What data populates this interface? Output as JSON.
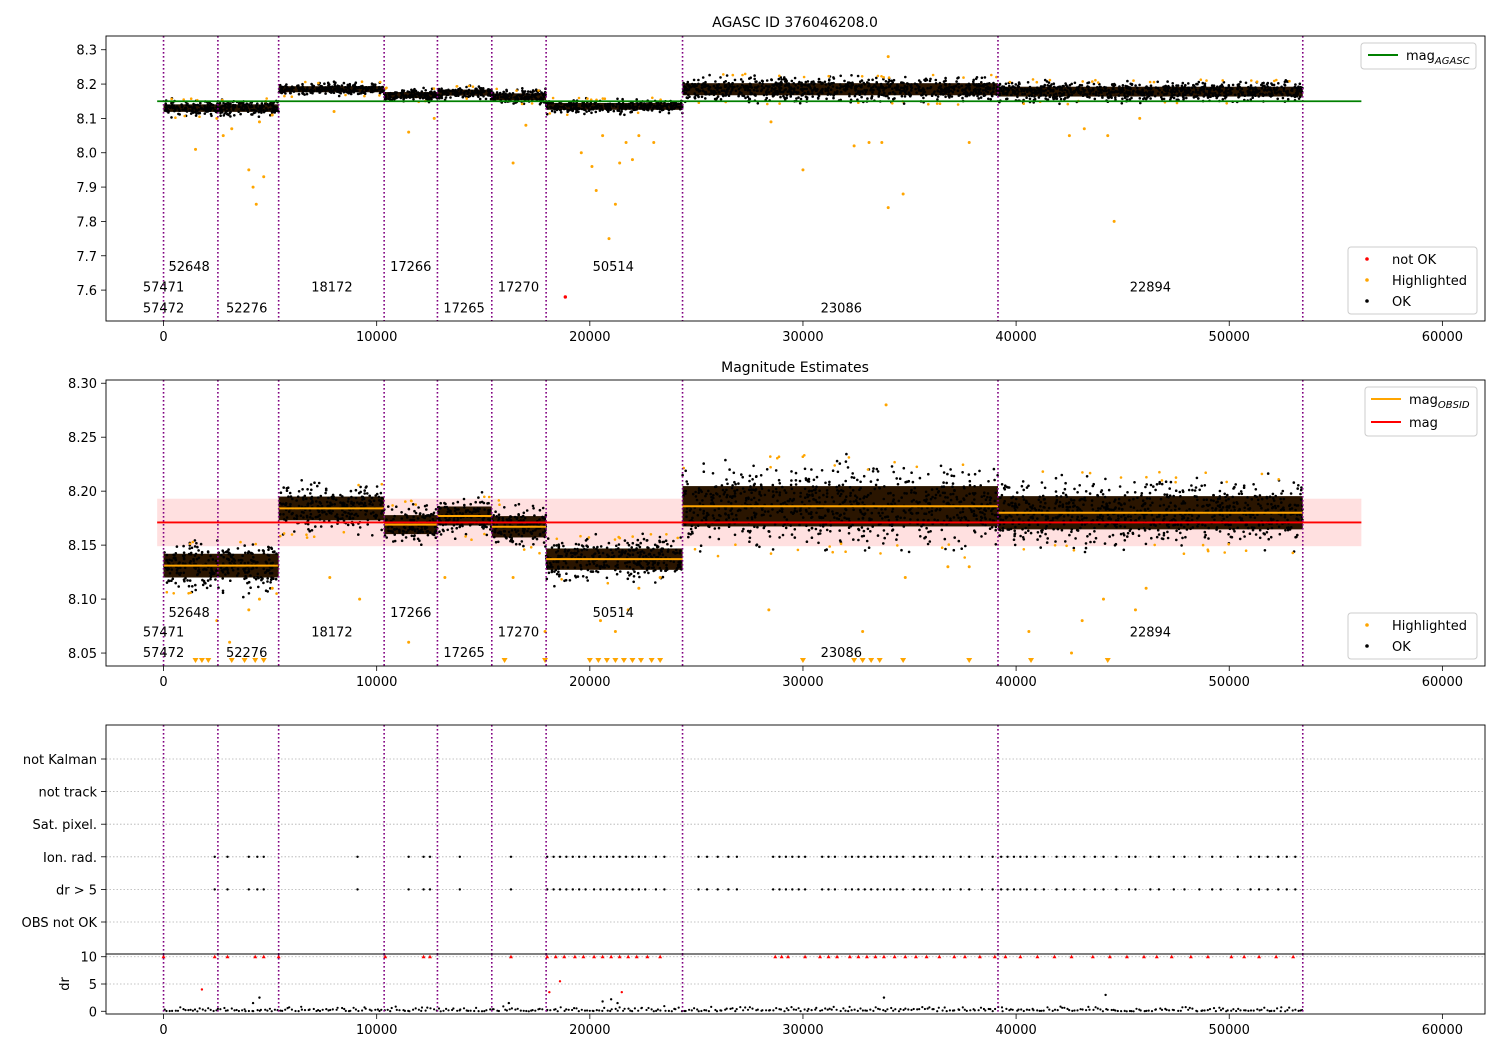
{
  "chart_data": [
    {
      "type": "scatter",
      "title": "AGASC ID 376046208.0",
      "xlim": [
        -2700,
        62000
      ],
      "ylim": [
        7.51,
        8.34
      ],
      "x_ticks": [
        0,
        10000,
        20000,
        30000,
        40000,
        50000,
        60000
      ],
      "y_ticks": [
        7.6,
        7.7,
        7.8,
        7.9,
        8.0,
        8.1,
        8.2,
        8.3
      ],
      "obs_boundaries": [
        0,
        2550,
        5400,
        10350,
        12850,
        15400,
        17950,
        24350,
        39150,
        53450
      ],
      "segments": [
        {
          "x0": 0,
          "x1": 5400,
          "mean": 8.13,
          "spread": 0.01
        },
        {
          "x0": 5400,
          "x1": 10350,
          "mean": 8.185,
          "spread": 0.008
        },
        {
          "x0": 10350,
          "x1": 12850,
          "mean": 8.168,
          "spread": 0.008
        },
        {
          "x0": 12850,
          "x1": 15400,
          "mean": 8.175,
          "spread": 0.008
        },
        {
          "x0": 15400,
          "x1": 17950,
          "mean": 8.163,
          "spread": 0.009
        },
        {
          "x0": 17950,
          "x1": 24350,
          "mean": 8.135,
          "spread": 0.009
        },
        {
          "x0": 24350,
          "x1": 39150,
          "mean": 8.185,
          "spread": 0.016
        },
        {
          "x0": 39150,
          "x1": 53450,
          "mean": 8.178,
          "spread": 0.013
        }
      ],
      "reference_line": {
        "name": "mag_AGASC",
        "y": 8.15,
        "x0": -300,
        "x1": 56200,
        "color": "#008000"
      },
      "obsid_labels": [
        {
          "text": "52648",
          "x": 1200,
          "row": 0
        },
        {
          "text": "57471",
          "x": 0,
          "row": 1
        },
        {
          "text": "57472",
          "x": 0,
          "row": 2
        },
        {
          "text": "52276",
          "x": 3900,
          "row": 2
        },
        {
          "text": "18172",
          "x": 7900,
          "row": 1
        },
        {
          "text": "17266",
          "x": 11600,
          "row": 0
        },
        {
          "text": "17265",
          "x": 14100,
          "row": 2
        },
        {
          "text": "17270",
          "x": 16650,
          "row": 1
        },
        {
          "text": "50514",
          "x": 21100,
          "row": 0
        },
        {
          "text": "23086",
          "x": 31800,
          "row": 2
        },
        {
          "text": "22894",
          "x": 46300,
          "row": 1
        }
      ],
      "label_rows_y": [
        7.67,
        7.61,
        7.55
      ],
      "outliers": [
        [
          1500,
          8.01
        ],
        [
          2500,
          8.1
        ],
        [
          2800,
          8.05
        ],
        [
          3200,
          8.07
        ],
        [
          4000,
          7.95
        ],
        [
          4200,
          7.9
        ],
        [
          4350,
          7.85
        ],
        [
          4500,
          8.09
        ],
        [
          4700,
          7.93
        ],
        [
          5100,
          8.11
        ],
        [
          8000,
          8.12
        ],
        [
          11500,
          8.06
        ],
        [
          12700,
          8.1
        ],
        [
          16400,
          7.97
        ],
        [
          17000,
          8.08
        ],
        [
          19600,
          8.0
        ],
        [
          20100,
          7.96
        ],
        [
          20300,
          7.89
        ],
        [
          20600,
          8.05
        ],
        [
          20900,
          7.75
        ],
        [
          21200,
          7.85
        ],
        [
          21400,
          7.97
        ],
        [
          21700,
          8.03
        ],
        [
          22000,
          7.98
        ],
        [
          22300,
          8.05
        ],
        [
          23000,
          8.03
        ],
        [
          28500,
          8.09
        ],
        [
          30000,
          7.95
        ],
        [
          32400,
          8.02
        ],
        [
          33100,
          8.03
        ],
        [
          33700,
          8.03
        ],
        [
          34000,
          7.84
        ],
        [
          34700,
          7.88
        ],
        [
          34000,
          8.28
        ],
        [
          37800,
          8.03
        ],
        [
          42500,
          8.05
        ],
        [
          43200,
          8.07
        ],
        [
          44300,
          8.05
        ],
        [
          44600,
          7.8
        ],
        [
          45800,
          8.1
        ]
      ],
      "red_points": [
        [
          18850,
          7.58
        ]
      ],
      "legend_upper": [
        {
          "label": "mag",
          "sub": "AGASC",
          "color": "#008000"
        }
      ],
      "legend_lower": [
        {
          "label": "not OK",
          "color": "#ff0000"
        },
        {
          "label": "Highlighted",
          "color": "#ffa500"
        },
        {
          "label": "OK",
          "color": "#000000"
        }
      ],
      "legend_upper_position": "upper right",
      "legend_lower_position": "lower right"
    },
    {
      "type": "scatter",
      "title": "Magnitude Estimates",
      "xlim": [
        -2700,
        62000
      ],
      "ylim": [
        8.038,
        8.303
      ],
      "x_ticks": [
        0,
        10000,
        20000,
        30000,
        40000,
        50000,
        60000
      ],
      "y_ticks": [
        8.05,
        8.1,
        8.15,
        8.2,
        8.25,
        8.3
      ],
      "obs_boundaries": [
        0,
        2550,
        5400,
        10350,
        12850,
        15400,
        17950,
        24350,
        39150,
        53450
      ],
      "segments": [
        {
          "x0": 0,
          "x1": 5400,
          "mean": 8.131,
          "spread": 0.01
        },
        {
          "x0": 5400,
          "x1": 10350,
          "mean": 8.184,
          "spread": 0.01
        },
        {
          "x0": 10350,
          "x1": 12850,
          "mean": 8.169,
          "spread": 0.008
        },
        {
          "x0": 12850,
          "x1": 15400,
          "mean": 8.177,
          "spread": 0.008
        },
        {
          "x0": 15400,
          "x1": 17950,
          "mean": 8.167,
          "spread": 0.009
        },
        {
          "x0": 17950,
          "x1": 24350,
          "mean": 8.137,
          "spread": 0.009
        },
        {
          "x0": 24350,
          "x1": 39150,
          "mean": 8.186,
          "spread": 0.017
        },
        {
          "x0": 39150,
          "x1": 53450,
          "mean": 8.18,
          "spread": 0.014
        }
      ],
      "mag_line": {
        "name": "mag",
        "y": 8.171,
        "x0": -300,
        "x1": 56200,
        "color": "#ff0000"
      },
      "mag_band": [
        8.149,
        8.193
      ],
      "obsid_labels": [
        {
          "text": "52648",
          "x": 1200,
          "row": 0
        },
        {
          "text": "57471",
          "x": 0,
          "row": 1
        },
        {
          "text": "57472",
          "x": 0,
          "row": 2
        },
        {
          "text": "52276",
          "x": 3900,
          "row": 2
        },
        {
          "text": "18172",
          "x": 7900,
          "row": 1
        },
        {
          "text": "17266",
          "x": 11600,
          "row": 0
        },
        {
          "text": "17265",
          "x": 14100,
          "row": 2
        },
        {
          "text": "17270",
          "x": 16650,
          "row": 1
        },
        {
          "text": "50514",
          "x": 21100,
          "row": 0
        },
        {
          "text": "23086",
          "x": 31800,
          "row": 2
        },
        {
          "text": "22894",
          "x": 46300,
          "row": 1
        }
      ],
      "label_rows_y": [
        8.088,
        8.07,
        8.051
      ],
      "outliers": [
        [
          2500,
          8.08
        ],
        [
          3100,
          8.06
        ],
        [
          4000,
          8.09
        ],
        [
          4500,
          8.1
        ],
        [
          5100,
          8.11
        ],
        [
          7800,
          8.12
        ],
        [
          9200,
          8.1
        ],
        [
          11500,
          8.06
        ],
        [
          13200,
          8.12
        ],
        [
          16400,
          8.12
        ],
        [
          17900,
          8.07
        ],
        [
          20500,
          8.08
        ],
        [
          21200,
          8.07
        ],
        [
          21800,
          8.09
        ],
        [
          22300,
          8.11
        ],
        [
          23300,
          8.12
        ],
        [
          28400,
          8.09
        ],
        [
          32800,
          8.07
        ],
        [
          33900,
          8.28
        ],
        [
          34800,
          8.12
        ],
        [
          36800,
          8.13
        ],
        [
          37800,
          8.13
        ],
        [
          40600,
          8.07
        ],
        [
          42600,
          8.05
        ],
        [
          43100,
          8.08
        ],
        [
          44100,
          8.1
        ],
        [
          45600,
          8.09
        ],
        [
          46100,
          8.11
        ]
      ],
      "down_markers": [
        1500,
        1800,
        2100,
        3200,
        3800,
        4300,
        4700,
        16000,
        17900,
        20000,
        20400,
        20800,
        21200,
        21600,
        22000,
        22400,
        22900,
        23300,
        30000,
        32400,
        32800,
        33200,
        33600,
        34700,
        37800,
        40700,
        44300
      ],
      "legend_upper": [
        {
          "label": "mag",
          "sub": "OBSID",
          "color": "#ffa500"
        },
        {
          "label": "mag",
          "sub": "",
          "color": "#ff0000"
        }
      ],
      "legend_lower": [
        {
          "label": "Highlighted",
          "color": "#ffa500"
        },
        {
          "label": "OK",
          "color": "#000000"
        }
      ],
      "legend_upper_position": "upper right",
      "legend_lower_position": "lower right"
    },
    {
      "type": "scatter",
      "title": "",
      "xlim": [
        -2700,
        62000
      ],
      "x_ticks": [
        0,
        10000,
        20000,
        30000,
        40000,
        50000,
        60000
      ],
      "obs_boundaries": [
        0,
        2550,
        5400,
        10350,
        12850,
        15400,
        17950,
        24350,
        39150,
        53450
      ],
      "flag_categories": [
        "not Kalman",
        "not track",
        "Sat. pixel.",
        "Ion. rad.",
        "dr > 5",
        "OBS not OK"
      ],
      "flag_points_x": [
        2400,
        3000,
        4000,
        4400,
        4700,
        9100,
        11500,
        12200,
        12500,
        13900,
        16300,
        18000,
        18300,
        18600,
        18900,
        19200,
        19500,
        19800,
        20200,
        20500,
        20800,
        21100,
        21400,
        21700,
        22000,
        22300,
        22600,
        23100,
        23500,
        25100,
        25500,
        26000,
        26500,
        26900,
        28600,
        28900,
        29200,
        29500,
        29800,
        30100,
        30900,
        31200,
        31500,
        32000,
        32300,
        32600,
        32900,
        33200,
        33500,
        33800,
        34100,
        34400,
        34700,
        35200,
        35500,
        35800,
        36100,
        36600,
        36900,
        37400,
        37800,
        38400,
        38900,
        39300,
        39600,
        39900,
        40200,
        40500,
        40900,
        41300,
        41900,
        42300,
        42700,
        43200,
        43700,
        44100,
        44700,
        45300,
        45600,
        46300,
        46700,
        47400,
        47900,
        48600,
        49200,
        49600,
        50400,
        51000,
        51400,
        51800,
        52300,
        52700,
        53100
      ],
      "dr_ylim": [
        -0.5,
        10.5
      ],
      "dr_ticks": [
        0,
        5,
        10
      ],
      "dr_label": "dr",
      "dr_points": [
        [
          1800,
          4.0
        ],
        [
          4200,
          1.5
        ],
        [
          4500,
          2.5
        ],
        [
          16200,
          1.5
        ],
        [
          18100,
          3.5
        ],
        [
          18600,
          5.5
        ],
        [
          20600,
          1.8
        ],
        [
          21000,
          2.2
        ],
        [
          21300,
          1.5
        ],
        [
          21500,
          3.5
        ],
        [
          33800,
          2.5
        ],
        [
          44200,
          3.0
        ]
      ],
      "dr_clipped_x": [
        0,
        2400,
        3000,
        4300,
        4700,
        5400,
        10400,
        12200,
        12500,
        16300,
        18000,
        18400,
        18800,
        19300,
        19700,
        20200,
        20600,
        21000,
        21400,
        21800,
        22200,
        22700,
        23300,
        28700,
        29000,
        29300,
        30100,
        30800,
        31200,
        31600,
        32200,
        32600,
        33000,
        33400,
        33800,
        34300,
        34800,
        35300,
        35800,
        36400,
        37100,
        37600,
        38300,
        39000,
        39500,
        40200,
        41000,
        41800,
        42600,
        43600,
        44400,
        45200,
        46000,
        46600,
        47300,
        48200,
        49000,
        50100,
        50700,
        51400,
        52200,
        53000
      ]
    }
  ]
}
